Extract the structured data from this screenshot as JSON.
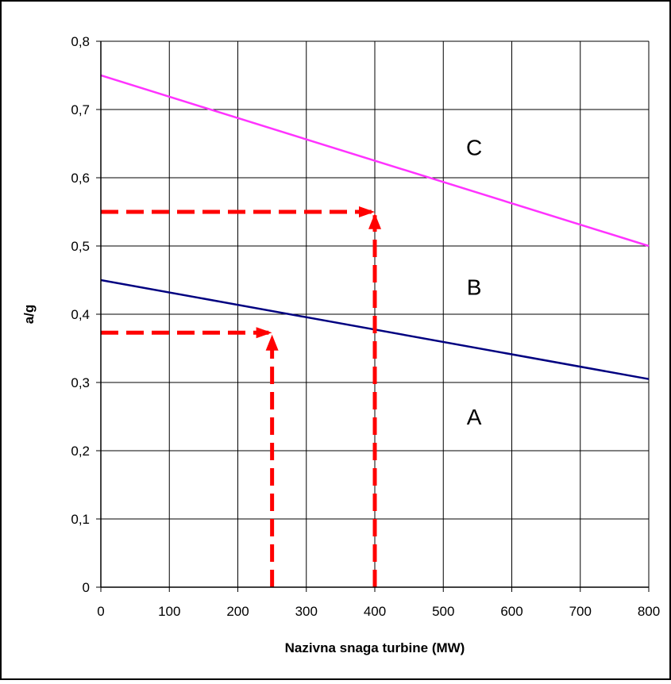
{
  "chart_data": {
    "type": "line",
    "title": "",
    "xlabel": "Nazivna snaga turbine (MW)",
    "ylabel": "a/g",
    "xlim": [
      0,
      800
    ],
    "ylim": [
      0,
      0.8
    ],
    "x_ticks": [
      0,
      100,
      200,
      300,
      400,
      500,
      600,
      700,
      800
    ],
    "x_tick_labels": [
      "0",
      "100",
      "200",
      "300",
      "400",
      "500",
      "600",
      "700",
      "800"
    ],
    "y_ticks": [
      0,
      0.1,
      0.2,
      0.3,
      0.4,
      0.5,
      0.6,
      0.7,
      0.8
    ],
    "y_tick_labels": [
      "0",
      "0,1",
      "0,2",
      "0,3",
      "0,4",
      "0,5",
      "0,6",
      "0,7",
      "0,8"
    ],
    "grid": true,
    "legend": "none",
    "series": [
      {
        "x": [
          0,
          800
        ],
        "y": [
          0.75,
          0.5
        ],
        "color": "#ff33ff"
      },
      {
        "x": [
          0,
          800
        ],
        "y": [
          0.45,
          0.305
        ],
        "color": "#000080"
      }
    ],
    "region_labels": [
      {
        "text": "C",
        "x": 545,
        "y": 0.645
      },
      {
        "text": "B",
        "x": 545,
        "y": 0.44
      },
      {
        "text": "A",
        "x": 545,
        "y": 0.25
      }
    ],
    "guide_lines": {
      "color": "#ff0000",
      "paths": [
        {
          "points": [
            [
              0,
              0.55
            ],
            [
              395,
              0.55
            ]
          ]
        },
        {
          "points": [
            [
              400,
              0
            ],
            [
              400,
              0.545
            ]
          ]
        },
        {
          "points": [
            [
              0,
              0.373
            ],
            [
              245,
              0.373
            ]
          ]
        },
        {
          "points": [
            [
              250,
              0
            ],
            [
              250,
              0.368
            ]
          ]
        }
      ],
      "arrows": [
        {
          "x": 400,
          "y": 0.55,
          "dir": "right"
        },
        {
          "x": 400,
          "y": 0.548,
          "dir": "up"
        },
        {
          "x": 250,
          "y": 0.373,
          "dir": "right"
        },
        {
          "x": 250,
          "y": 0.37,
          "dir": "up"
        }
      ]
    }
  }
}
